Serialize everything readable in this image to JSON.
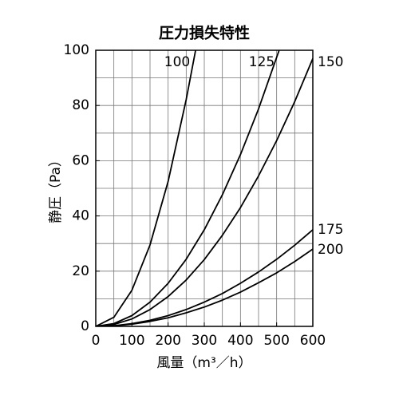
{
  "chart_data": {
    "type": "line",
    "title": "圧力損失特性",
    "xlabel": "風量（m³／h）",
    "ylabel": "静圧（Pa）",
    "xlim": [
      0,
      600
    ],
    "ylim": [
      0,
      100
    ],
    "xticks": [
      0,
      100,
      200,
      300,
      400,
      500,
      600
    ],
    "yticks": [
      0,
      20,
      40,
      60,
      80,
      100
    ],
    "xgrid": [
      50,
      100,
      150,
      200,
      250,
      300,
      350,
      400,
      450,
      500,
      550
    ],
    "ygrid": [
      10,
      20,
      30,
      40,
      50,
      60,
      70,
      80,
      90
    ],
    "grid": true,
    "series": [
      {
        "name": "100",
        "color": "#000000",
        "x": [
          0,
          50,
          100,
          150,
          200,
          250,
          276
        ],
        "values": [
          0,
          3.3,
          13.1,
          29.5,
          52.5,
          82.1,
          100
        ]
      },
      {
        "name": "125",
        "color": "#000000",
        "x": [
          0,
          50,
          100,
          150,
          200,
          250,
          300,
          350,
          400,
          450,
          507
        ],
        "values": [
          0,
          1.0,
          3.9,
          8.8,
          15.6,
          24.3,
          35,
          47.7,
          62.2,
          78.8,
          100
        ]
      },
      {
        "name": "150",
        "color": "#000000",
        "x": [
          0,
          50,
          100,
          150,
          200,
          250,
          300,
          350,
          400,
          450,
          500,
          550,
          600
        ],
        "values": [
          0,
          0.7,
          2.7,
          6.1,
          10.8,
          16.8,
          24.2,
          33,
          43,
          54.5,
          67.3,
          81.4,
          97
        ]
      },
      {
        "name": "175",
        "color": "#000000",
        "x": [
          0,
          50,
          100,
          150,
          200,
          250,
          300,
          350,
          400,
          450,
          500,
          550,
          600
        ],
        "values": [
          0,
          0.2,
          1,
          2.2,
          3.9,
          6.1,
          8.8,
          11.9,
          15.6,
          19.7,
          24.3,
          29.4,
          35
        ]
      },
      {
        "name": "200",
        "color": "#000000",
        "x": [
          0,
          50,
          100,
          150,
          200,
          250,
          300,
          350,
          400,
          450,
          500,
          550,
          600
        ],
        "values": [
          0,
          0.2,
          0.8,
          1.8,
          3.1,
          4.9,
          7,
          9.5,
          12.4,
          15.8,
          19.4,
          23.5,
          28
        ]
      }
    ]
  }
}
